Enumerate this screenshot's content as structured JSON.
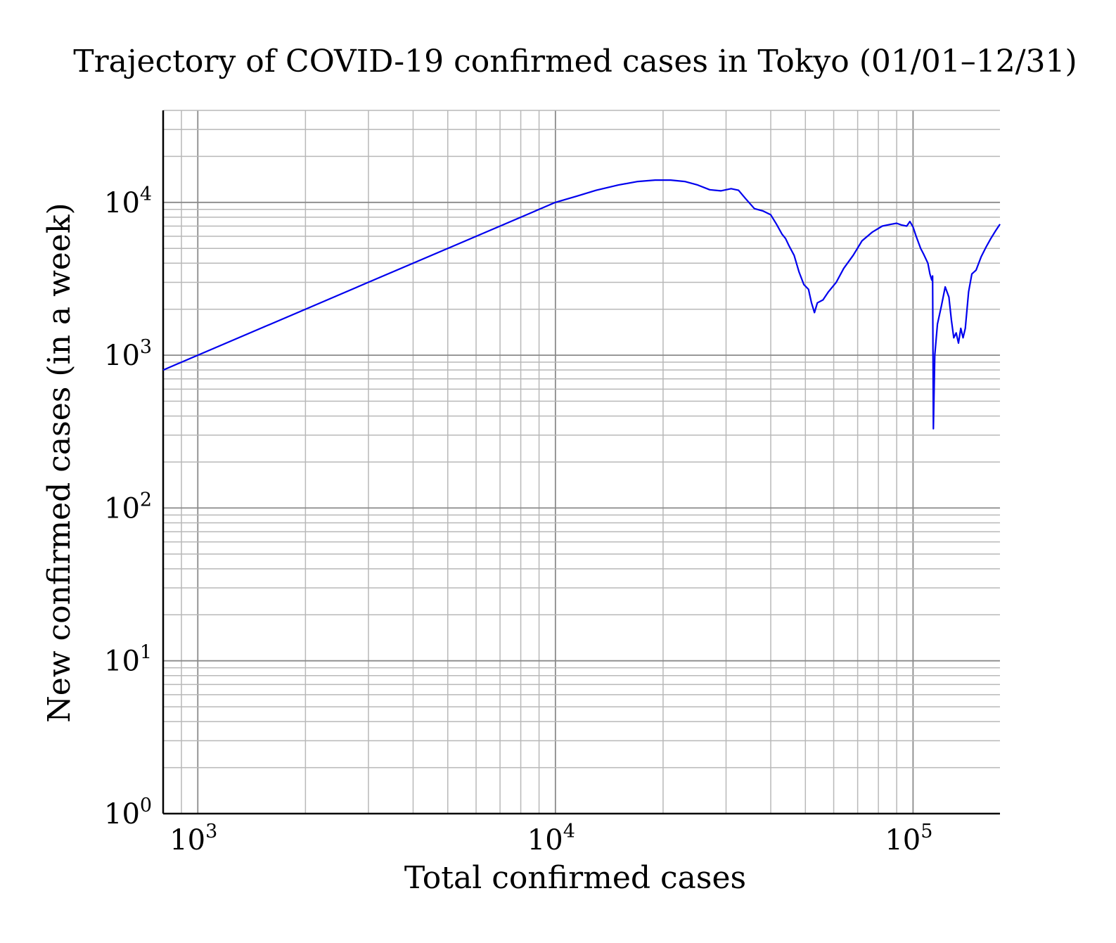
{
  "chart_data": {
    "type": "line",
    "title": "Trajectory of COVID-19 confirmed cases in Tokyo (01/01–12/31)",
    "xlabel": "Total confirmed cases",
    "ylabel": "New confirmed cases (in a week)",
    "xscale": "log",
    "yscale": "log",
    "xlim": [
      800,
      175000
    ],
    "ylim": [
      1,
      40000
    ],
    "grid": true,
    "legend": "none",
    "x_ticks": [
      {
        "base": "10",
        "exp": "3",
        "value": 1000
      },
      {
        "base": "10",
        "exp": "4",
        "value": 10000
      },
      {
        "base": "10",
        "exp": "5",
        "value": 100000
      }
    ],
    "y_ticks": [
      {
        "base": "10",
        "exp": "0",
        "value": 1
      },
      {
        "base": "10",
        "exp": "1",
        "value": 10
      },
      {
        "base": "10",
        "exp": "2",
        "value": 100
      },
      {
        "base": "10",
        "exp": "3",
        "value": 1000
      },
      {
        "base": "10",
        "exp": "4",
        "value": 10000
      }
    ],
    "colors": {
      "series": "#0000ee",
      "grid_minor": "#b8b8b8",
      "grid_major": "#8a8a8a"
    },
    "series": [
      {
        "color": "#0000ee",
        "x": [
          800,
          1000,
          2000,
          3000,
          5000,
          7000,
          10000,
          11500,
          13000,
          15000,
          17000,
          19000,
          21000,
          23000,
          25000,
          27000,
          29000,
          31000,
          32500,
          34000,
          36000,
          38000,
          40000,
          41500,
          43000,
          44000,
          45000,
          46500,
          48000,
          49500,
          51000,
          52000,
          53000,
          54000,
          56000,
          58000,
          61000,
          64000,
          68000,
          72000,
          77000,
          82000,
          87000,
          90000,
          93000,
          96000,
          98000,
          100000,
          102000,
          105000,
          107000,
          110000,
          111500,
          112800,
          113400,
          114000,
          115000,
          117000,
          120000,
          123000,
          126000,
          128000,
          130000,
          132000,
          134000,
          136000,
          138000,
          140000,
          143000,
          146000,
          150000,
          155000,
          160000,
          165000,
          170000,
          175000
        ],
        "y": [
          800,
          1000,
          2000,
          3000,
          5000,
          7000,
          10000,
          11000,
          12000,
          13000,
          13700,
          14000,
          14000,
          13700,
          13000,
          12100,
          11900,
          12300,
          12000,
          10600,
          9100,
          8800,
          8300,
          7200,
          6200,
          5800,
          5200,
          4500,
          3500,
          2900,
          2700,
          2200,
          1900,
          2200,
          2300,
          2600,
          3000,
          3700,
          4500,
          5600,
          6400,
          7000,
          7200,
          7300,
          7100,
          7000,
          7500,
          6900,
          6000,
          5000,
          4600,
          4000,
          3400,
          3100,
          3300,
          330,
          1000,
          1600,
          2100,
          2800,
          2400,
          1700,
          1300,
          1400,
          1200,
          1500,
          1300,
          1500,
          2600,
          3400,
          3600,
          4400,
          5100,
          5800,
          6500,
          7200
        ]
      }
    ]
  }
}
